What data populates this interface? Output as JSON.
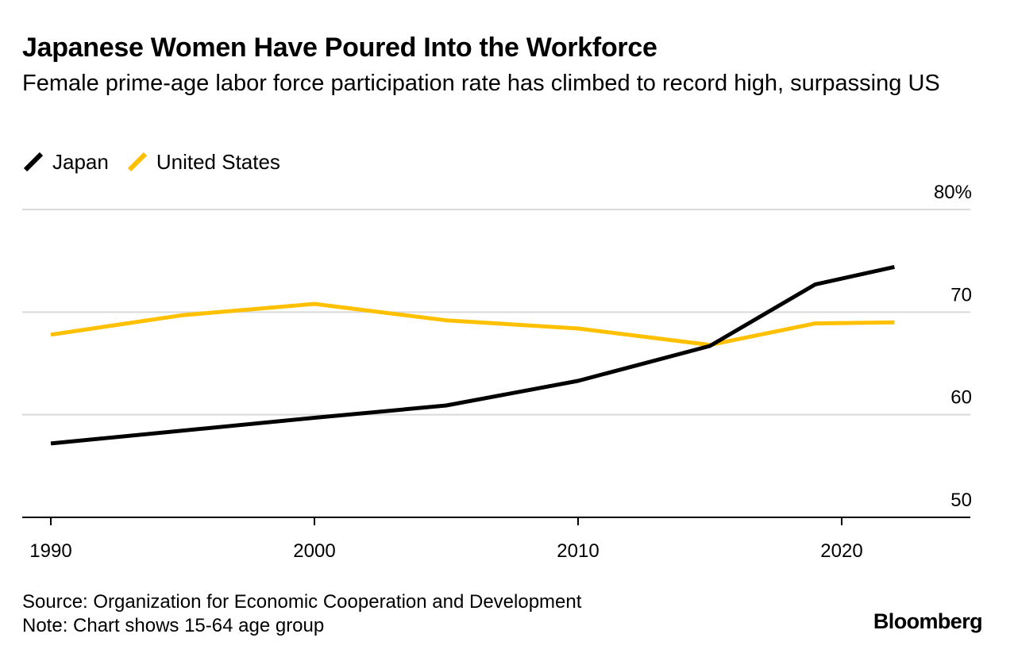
{
  "title": "Japanese Women Have Poured Into the Workforce",
  "subtitle": "Female prime-age labor force participation rate has climbed to record high, surpassing US",
  "colors": {
    "japan": "#000000",
    "united_states": "#ffc000",
    "grid": "#d9d9d9",
    "axis": "#000000"
  },
  "source": "Source: Organization for Economic Cooperation and Development",
  "note": "Note: Chart shows 15-64 age group",
  "brand": "Bloomberg",
  "chart_data": {
    "type": "line",
    "xlim": [
      1989,
      2025
    ],
    "ylim": [
      50,
      80
    ],
    "x_ticks": [
      1990,
      2000,
      2010,
      2020
    ],
    "y_ticks": [
      {
        "value": 80,
        "label": "80%"
      },
      {
        "value": 70,
        "label": "70"
      },
      {
        "value": 60,
        "label": "60"
      },
      {
        "value": 50,
        "label": "50"
      }
    ],
    "grid": true,
    "legend_position": "top-left",
    "series": [
      {
        "name": "Japan",
        "color": "#000000",
        "points": [
          {
            "x": 1990,
            "y": 57.2
          },
          {
            "x": 2000,
            "y": 59.7
          },
          {
            "x": 2005,
            "y": 60.9
          },
          {
            "x": 2010,
            "y": 63.3
          },
          {
            "x": 2015,
            "y": 66.7
          },
          {
            "x": 2019,
            "y": 72.7
          },
          {
            "x": 2022,
            "y": 74.4
          }
        ]
      },
      {
        "name": "United States",
        "color": "#ffc000",
        "points": [
          {
            "x": 1990,
            "y": 67.8
          },
          {
            "x": 1995,
            "y": 69.7
          },
          {
            "x": 2000,
            "y": 70.8
          },
          {
            "x": 2005,
            "y": 69.2
          },
          {
            "x": 2010,
            "y": 68.4
          },
          {
            "x": 2015,
            "y": 66.8
          },
          {
            "x": 2019,
            "y": 68.9
          },
          {
            "x": 2022,
            "y": 69.0
          }
        ]
      }
    ]
  }
}
